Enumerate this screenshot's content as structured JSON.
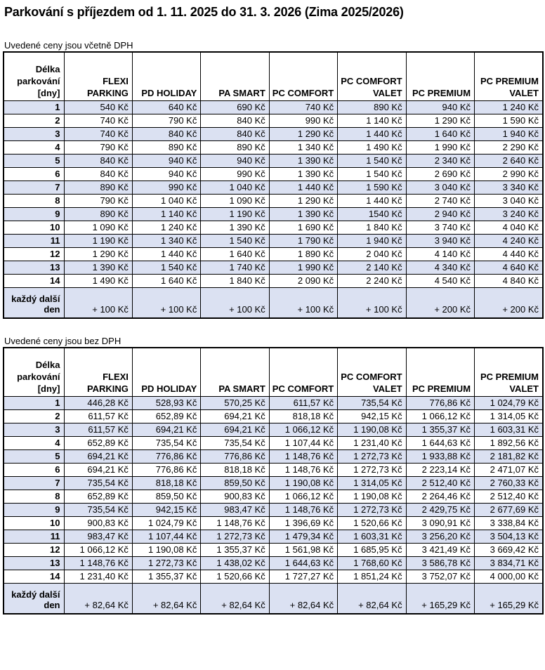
{
  "title": "Parkování s příjezdem od 1. 11. 2025 do 31. 3. 2026 (Zima 2025/2026)",
  "currency_suffix": "Kč",
  "stripe_color": "#dbe1f2",
  "columns": [
    "Délka parkování [dny]",
    "FLEXI PARKING",
    "PD HOLIDAY",
    "PA SMART",
    "PC COMFORT",
    "PC COMFORT VALET",
    "PC PREMIUM",
    "PC PREMIUM VALET"
  ],
  "tables": [
    {
      "subtitle": "Uvedené ceny jsou včetně DPH",
      "rows": [
        {
          "day": "1",
          "prices": [
            "540 Kč",
            "640 Kč",
            "690 Kč",
            "740 Kč",
            "890 Kč",
            "940 Kč",
            "1 240 Kč"
          ]
        },
        {
          "day": "2",
          "prices": [
            "740 Kč",
            "790 Kč",
            "840 Kč",
            "990 Kč",
            "1 140 Kč",
            "1 290 Kč",
            "1 590 Kč"
          ]
        },
        {
          "day": "3",
          "prices": [
            "740 Kč",
            "840 Kč",
            "840 Kč",
            "1 290 Kč",
            "1 440 Kč",
            "1 640 Kč",
            "1 940 Kč"
          ]
        },
        {
          "day": "4",
          "prices": [
            "790 Kč",
            "890 Kč",
            "890 Kč",
            "1 340 Kč",
            "1 490 Kč",
            "1 990 Kč",
            "2 290 Kč"
          ]
        },
        {
          "day": "5",
          "prices": [
            "840 Kč",
            "940 Kč",
            "940 Kč",
            "1 390 Kč",
            "1 540 Kč",
            "2 340 Kč",
            "2 640 Kč"
          ]
        },
        {
          "day": "6",
          "prices": [
            "840 Kč",
            "940 Kč",
            "990 Kč",
            "1 390 Kč",
            "1 540 Kč",
            "2 690 Kč",
            "2 990 Kč"
          ]
        },
        {
          "day": "7",
          "prices": [
            "890 Kč",
            "990 Kč",
            "1 040 Kč",
            "1 440 Kč",
            "1 590 Kč",
            "3 040 Kč",
            "3 340 Kč"
          ]
        },
        {
          "day": "8",
          "prices": [
            "790 Kč",
            "1 040 Kč",
            "1 090 Kč",
            "1 290 Kč",
            "1 440 Kč",
            "2 740 Kč",
            "3 040 Kč"
          ]
        },
        {
          "day": "9",
          "prices": [
            "890 Kč",
            "1 140 Kč",
            "1 190 Kč",
            "1 390 Kč",
            "1540 Kč",
            "2 940 Kč",
            "3 240 Kč"
          ]
        },
        {
          "day": "10",
          "prices": [
            "1 090 Kč",
            "1 240 Kč",
            "1 390 Kč",
            "1 690 Kč",
            "1 840 Kč",
            "3 740 Kč",
            "4 040 Kč"
          ]
        },
        {
          "day": "11",
          "prices": [
            "1 190 Kč",
            "1 340 Kč",
            "1 540 Kč",
            "1 790 Kč",
            "1 940 Kč",
            "3 940 Kč",
            "4 240 Kč"
          ]
        },
        {
          "day": "12",
          "prices": [
            "1 290 Kč",
            "1 440 Kč",
            "1 640 Kč",
            "1 890 Kč",
            "2 040 Kč",
            "4 140 Kč",
            "4 440 Kč"
          ]
        },
        {
          "day": "13",
          "prices": [
            "1 390 Kč",
            "1 540 Kč",
            "1 740 Kč",
            "1 990 Kč",
            "2 140 Kč",
            "4 340 Kč",
            "4 640 Kč"
          ]
        },
        {
          "day": "14",
          "prices": [
            "1 490 Kč",
            "1 640 Kč",
            "1 840 Kč",
            "2 090 Kč",
            "2 240 Kč",
            "4 540 Kč",
            "4 840 Kč"
          ]
        },
        {
          "day": "každý další den",
          "prices": [
            "+ 100 Kč",
            "+ 100 Kč",
            "+ 100 Kč",
            "+ 100 Kč",
            "+ 100 Kč",
            "+ 200 Kč",
            "+ 200 Kč"
          ]
        }
      ]
    },
    {
      "subtitle": "Uvedené ceny jsou bez DPH",
      "rows": [
        {
          "day": "1",
          "prices": [
            "446,28 Kč",
            "528,93 Kč",
            "570,25 Kč",
            "611,57 Kč",
            "735,54 Kč",
            "776,86 Kč",
            "1 024,79 Kč"
          ]
        },
        {
          "day": "2",
          "prices": [
            "611,57 Kč",
            "652,89 Kč",
            "694,21 Kč",
            "818,18 Kč",
            "942,15 Kč",
            "1 066,12 Kč",
            "1 314,05 Kč"
          ]
        },
        {
          "day": "3",
          "prices": [
            "611,57 Kč",
            "694,21 Kč",
            "694,21 Kč",
            "1 066,12 Kč",
            "1 190,08 Kč",
            "1 355,37 Kč",
            "1 603,31 Kč"
          ]
        },
        {
          "day": "4",
          "prices": [
            "652,89 Kč",
            "735,54 Kč",
            "735,54 Kč",
            "1 107,44 Kč",
            "1 231,40 Kč",
            "1 644,63 Kč",
            "1 892,56 Kč"
          ]
        },
        {
          "day": "5",
          "prices": [
            "694,21 Kč",
            "776,86 Kč",
            "776,86 Kč",
            "1 148,76 Kč",
            "1 272,73 Kč",
            "1 933,88 Kč",
            "2 181,82 Kč"
          ]
        },
        {
          "day": "6",
          "prices": [
            "694,21 Kč",
            "776,86 Kč",
            "818,18 Kč",
            "1 148,76 Kč",
            "1 272,73 Kč",
            "2 223,14 Kč",
            "2 471,07 Kč"
          ]
        },
        {
          "day": "7",
          "prices": [
            "735,54 Kč",
            "818,18 Kč",
            "859,50 Kč",
            "1 190,08 Kč",
            "1 314,05 Kč",
            "2 512,40 Kč",
            "2 760,33 Kč"
          ]
        },
        {
          "day": "8",
          "prices": [
            "652,89 Kč",
            "859,50 Kč",
            "900,83 Kč",
            "1 066,12 Kč",
            "1 190,08 Kč",
            "2 264,46 Kč",
            "2 512,40 Kč"
          ]
        },
        {
          "day": "9",
          "prices": [
            "735,54 Kč",
            "942,15 Kč",
            "983,47 Kč",
            "1 148,76 Kč",
            "1 272,73 Kč",
            "2 429,75 Kč",
            "2 677,69 Kč"
          ]
        },
        {
          "day": "10",
          "prices": [
            "900,83 Kč",
            "1 024,79 Kč",
            "1 148,76 Kč",
            "1 396,69 Kč",
            "1 520,66 Kč",
            "3 090,91 Kč",
            "3 338,84 Kč"
          ]
        },
        {
          "day": "11",
          "prices": [
            "983,47 Kč",
            "1 107,44 Kč",
            "1 272,73 Kč",
            "1 479,34 Kč",
            "1 603,31 Kč",
            "3 256,20 Kč",
            "3 504,13 Kč"
          ]
        },
        {
          "day": "12",
          "prices": [
            "1 066,12 Kč",
            "1 190,08 Kč",
            "1 355,37 Kč",
            "1 561,98 Kč",
            "1 685,95 Kč",
            "3 421,49 Kč",
            "3 669,42 Kč"
          ]
        },
        {
          "day": "13",
          "prices": [
            "1 148,76 Kč",
            "1 272,73 Kč",
            "1 438,02 Kč",
            "1 644,63 Kč",
            "1 768,60 Kč",
            "3 586,78 Kč",
            "3 834,71 Kč"
          ]
        },
        {
          "day": "14",
          "prices": [
            "1 231,40 Kč",
            "1 355,37 Kč",
            "1 520,66 Kč",
            "1 727,27 Kč",
            "1 851,24 Kč",
            "3 752,07 Kč",
            "4 000,00 Kč"
          ]
        },
        {
          "day": "každý další den",
          "prices": [
            "+ 82,64 Kč",
            "+ 82,64 Kč",
            "+ 82,64 Kč",
            "+ 82,64 Kč",
            "+ 82,64 Kč",
            "+ 165,29 Kč",
            "+ 165,29 Kč"
          ]
        }
      ]
    }
  ]
}
